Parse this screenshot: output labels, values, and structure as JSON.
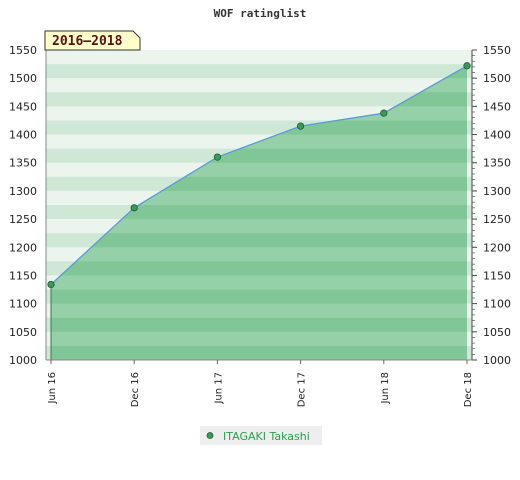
{
  "chart_data": {
    "type": "area",
    "title": "WOF ratinglist",
    "period_label": "2016–2018",
    "x_labels": [
      "Jun 16",
      "Dec 16",
      "Jun 17",
      "Dec 17",
      "Jun 18",
      "Dec 18"
    ],
    "series": [
      {
        "name": "ITAGAKI Takashi",
        "values": [
          1134,
          1270,
          1360,
          1415,
          1438,
          1522
        ]
      }
    ],
    "ylim": [
      1000,
      1550
    ],
    "yticks": [
      1000,
      1050,
      1100,
      1150,
      1200,
      1250,
      1300,
      1350,
      1400,
      1450,
      1500,
      1550
    ],
    "y_axis_both_sides": true,
    "grid": true,
    "legend_position": "bottom-center",
    "colors": {
      "area_fill": "#7cc494",
      "line": "#5b9bd5",
      "marker": "#3a9a5c",
      "band_light": "#ebf5ee",
      "band_dark": "#cfe8d6",
      "legend_text": "#2e9d4e",
      "period_bg": "#ffffcc"
    }
  }
}
